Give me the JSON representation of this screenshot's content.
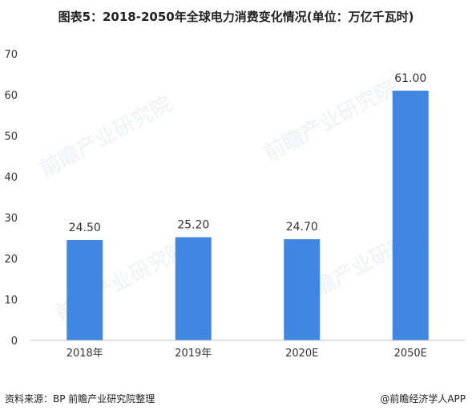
{
  "title": "图表5：2018-2050年全球电力消费变化情况(单位：万亿千瓦时)",
  "footer": {
    "source": "资料来源：BP 前瞻产业研究院整理",
    "brand": "@前瞻经济学人APP"
  },
  "watermark": "前瞻产业研究院",
  "colors": {
    "bar": "#3f87e0",
    "axis": "#bfbfbf",
    "text": "#333333"
  },
  "chart_data": {
    "type": "bar",
    "categories": [
      "2018年",
      "2019年",
      "2020E",
      "2050E"
    ],
    "values": [
      24.5,
      25.2,
      24.7,
      61.0
    ],
    "value_labels": [
      "24.50",
      "25.20",
      "24.70",
      "61.00"
    ],
    "title": "图表5：2018-2050年全球电力消费变化情况(单位：万亿千瓦时)",
    "xlabel": "",
    "ylabel": "",
    "ylim": [
      0,
      70
    ],
    "yticks": [
      0,
      10,
      20,
      30,
      40,
      50,
      60,
      70
    ],
    "grid": false,
    "legend": "none"
  }
}
